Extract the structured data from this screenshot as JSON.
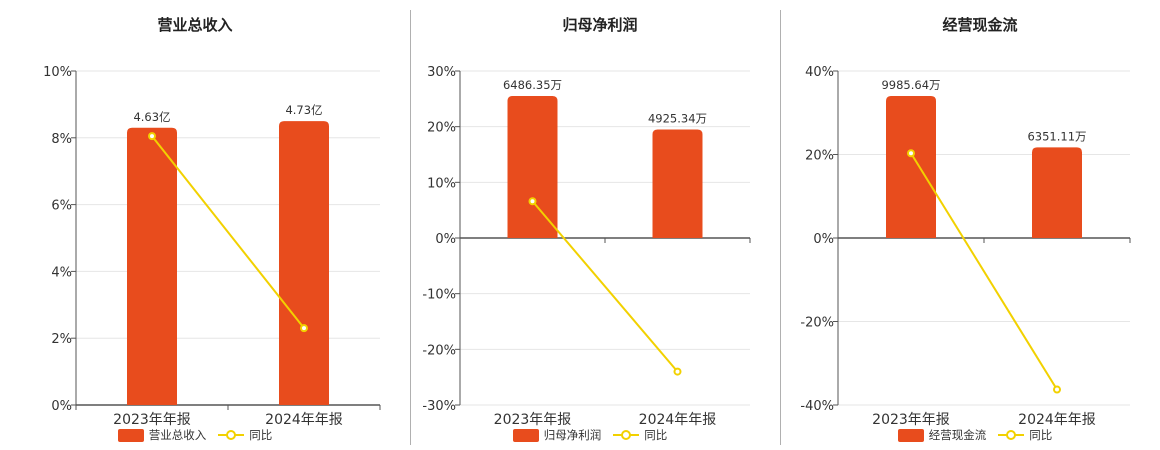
{
  "colors": {
    "bar": "#e84c1d",
    "line": "#f2d100",
    "grid": "#e6e6e6",
    "axis": "#555555"
  },
  "chart_data": [
    {
      "type": "bar",
      "title": "营业总收入",
      "categories": [
        "2023年年报",
        "2024年年报"
      ],
      "bar_values_pct_axis": [
        8.3,
        8.5
      ],
      "bar_labels": [
        "4.63亿",
        "4.73亿"
      ],
      "line_values": [
        8.05,
        2.3
      ],
      "ylim": [
        0,
        10
      ],
      "yticks": [
        0,
        2,
        4,
        6,
        8,
        10
      ],
      "ytick_labels": [
        "0%",
        "2%",
        "4%",
        "6%",
        "8%",
        "10%"
      ],
      "legend": {
        "bar": "营业总收入",
        "line": "同比"
      }
    },
    {
      "type": "bar",
      "title": "归母净利润",
      "categories": [
        "2023年年报",
        "2024年年报"
      ],
      "bar_values_pct_axis": [
        25.5,
        19.5
      ],
      "bar_labels": [
        "6486.35万",
        "4925.34万"
      ],
      "line_values": [
        6.6,
        -24.0
      ],
      "ylim": [
        -30,
        30
      ],
      "yticks": [
        -30,
        -20,
        -10,
        0,
        10,
        20,
        30
      ],
      "ytick_labels": [
        "-30%",
        "-20%",
        "-10%",
        "0%",
        "10%",
        "20%",
        "30%"
      ],
      "legend": {
        "bar": "归母净利润",
        "line": "同比"
      }
    },
    {
      "type": "bar",
      "title": "经营现金流",
      "categories": [
        "2023年年报",
        "2024年年报"
      ],
      "bar_values_pct_axis": [
        34.0,
        21.7
      ],
      "bar_labels": [
        "9985.64万",
        "6351.11万"
      ],
      "line_values": [
        20.3,
        -36.3
      ],
      "ylim": [
        -40,
        40
      ],
      "yticks": [
        -40,
        -20,
        0,
        20,
        40
      ],
      "ytick_labels": [
        "-40%",
        "-20%",
        "0%",
        "20%",
        "40%"
      ],
      "legend": {
        "bar": "经营现金流",
        "line": "同比"
      }
    }
  ]
}
